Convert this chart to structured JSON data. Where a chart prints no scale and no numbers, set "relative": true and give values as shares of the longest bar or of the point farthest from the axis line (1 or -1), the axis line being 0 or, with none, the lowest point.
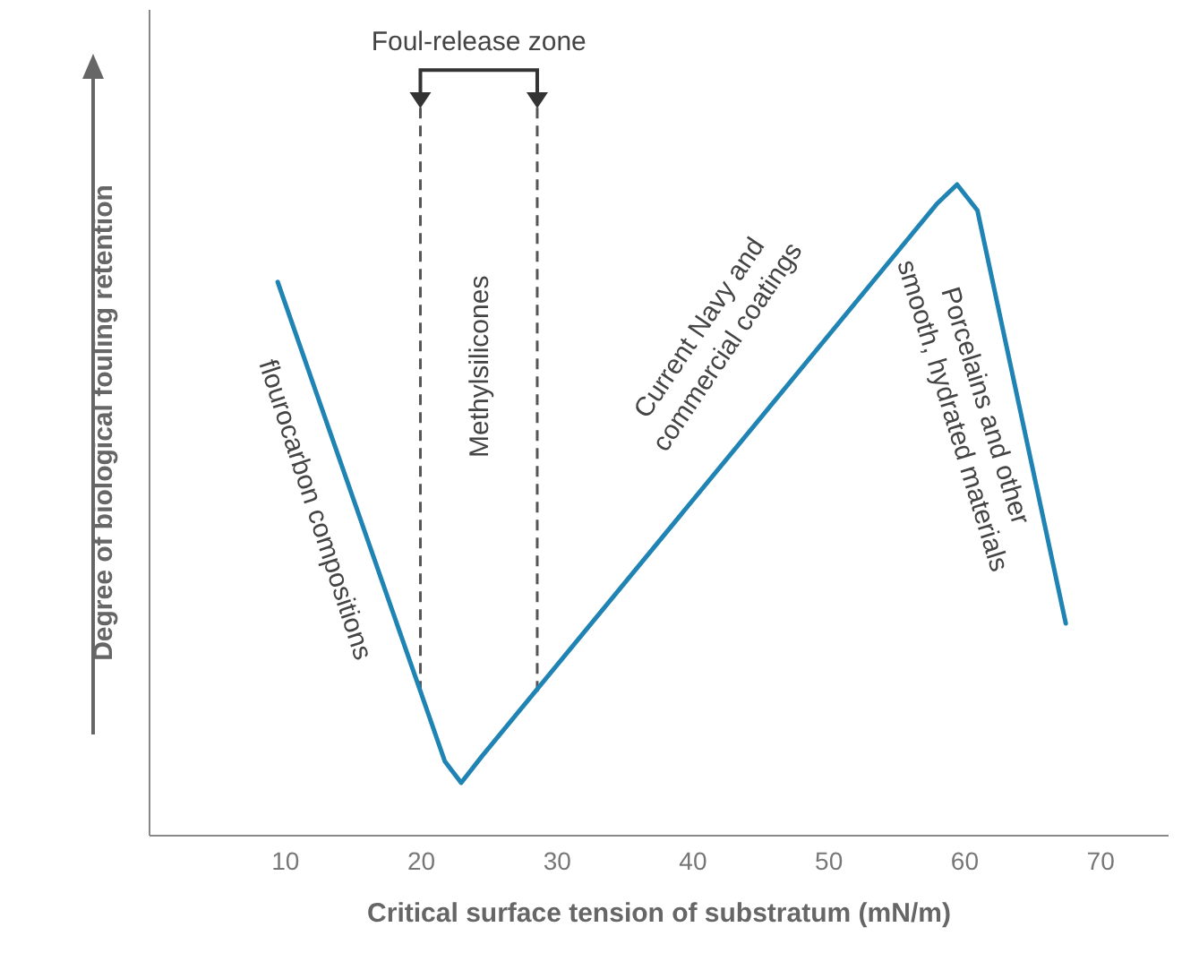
{
  "chart_data": {
    "type": "line",
    "relative": true,
    "xlabel": "Critical surface tension of substratum (mN/m)",
    "ylabel": "Degree of biological fouling retention",
    "xlim": [
      0,
      75
    ],
    "xticks": [
      10,
      20,
      30,
      40,
      50,
      60,
      70
    ],
    "grid": false,
    "marker": "none",
    "line_style": "solid",
    "series": [
      {
        "color": "#1f83b4",
        "x": [
          9.5,
          21.8,
          23,
          24.5,
          58,
          59.5,
          61,
          67.5
        ],
        "values": [
          0.85,
          0.113,
          0.08,
          0.12,
          0.97,
          1,
          0.96,
          0.325
        ]
      }
    ],
    "ref_lines": [
      {
        "axis": "x",
        "value": 20,
        "color": "#555555",
        "line_style": "dashed"
      },
      {
        "axis": "x",
        "value": 28.6,
        "color": "#555555",
        "line_style": "dashed"
      }
    ],
    "annotations": [
      "Foul-release zone",
      "flourocarbon compositions",
      "Methylsilicones",
      "Current Navy and commercial coatings",
      "Porcelains and other smooth, hydrated materials"
    ]
  }
}
